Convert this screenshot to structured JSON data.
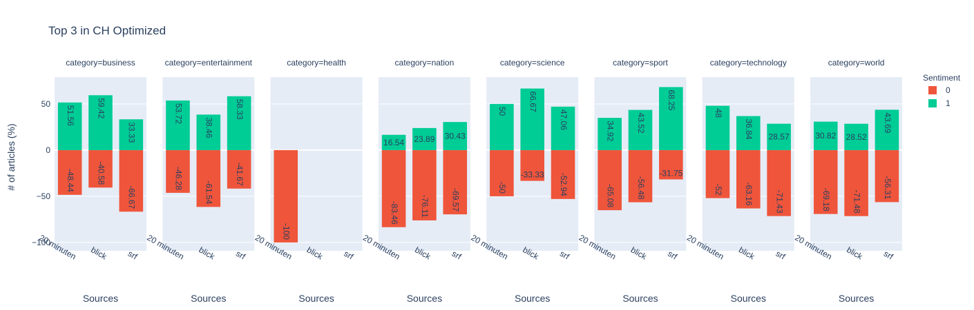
{
  "chart_data": {
    "type": "bar",
    "title": "Top 3 in CH Optimized",
    "ylabel": "# of articles (%)",
    "xlabel": "Sources",
    "ylim": [
      -109,
      79
    ],
    "yticks": [
      50,
      0,
      -50,
      -100
    ],
    "categories": [
      "20 minuten",
      "blick",
      "srf"
    ],
    "legend": {
      "title": "Sentiment",
      "placement": "right",
      "items": [
        {
          "name": "0",
          "color": "#EF553B"
        },
        {
          "name": "1",
          "color": "#00CC96"
        }
      ]
    },
    "facets": [
      {
        "label": "category=business",
        "series": [
          {
            "name": "0",
            "values": [
              -48.44,
              -40.58,
              -66.67
            ]
          },
          {
            "name": "1",
            "values": [
              51.56,
              59.42,
              33.33
            ]
          }
        ]
      },
      {
        "label": "category=entertainment",
        "series": [
          {
            "name": "0",
            "values": [
              -46.28,
              -61.54,
              -41.67
            ]
          },
          {
            "name": "1",
            "values": [
              53.72,
              38.46,
              58.33
            ]
          }
        ]
      },
      {
        "label": "category=health",
        "series": [
          {
            "name": "0",
            "values": [
              -100,
              null,
              null
            ]
          },
          {
            "name": "1",
            "values": [
              null,
              null,
              null
            ]
          }
        ]
      },
      {
        "label": "category=nation",
        "series": [
          {
            "name": "0",
            "values": [
              -83.46,
              -76.11,
              -69.57
            ]
          },
          {
            "name": "1",
            "values": [
              16.54,
              23.89,
              30.43
            ]
          }
        ]
      },
      {
        "label": "category=science",
        "series": [
          {
            "name": "0",
            "values": [
              -50,
              -33.33,
              -52.94
            ]
          },
          {
            "name": "1",
            "values": [
              50,
              66.67,
              47.06
            ]
          }
        ]
      },
      {
        "label": "category=sport",
        "series": [
          {
            "name": "0",
            "values": [
              -65.08,
              -56.48,
              -31.75
            ]
          },
          {
            "name": "1",
            "values": [
              34.92,
              43.52,
              68.25
            ]
          }
        ]
      },
      {
        "label": "category=technology",
        "series": [
          {
            "name": "0",
            "values": [
              -52,
              -63.16,
              -71.43
            ]
          },
          {
            "name": "1",
            "values": [
              48,
              36.84,
              28.57
            ]
          }
        ]
      },
      {
        "label": "category=world",
        "series": [
          {
            "name": "0",
            "values": [
              -69.18,
              -71.48,
              -56.31
            ]
          },
          {
            "name": "1",
            "values": [
              30.82,
              28.52,
              43.69
            ]
          }
        ]
      }
    ]
  }
}
